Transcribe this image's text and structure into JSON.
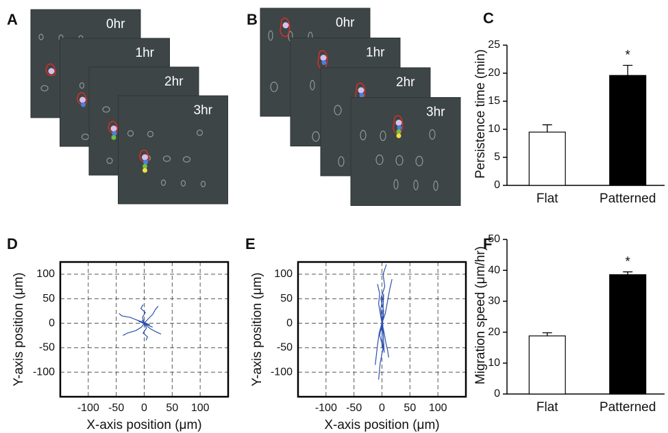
{
  "image_panels": [
    {
      "label": "A",
      "frames": [
        "0hr",
        "1hr",
        "2hr",
        "3hr"
      ]
    },
    {
      "label": "B",
      "frames": [
        "0hr",
        "1hr",
        "2hr",
        "3hr"
      ]
    }
  ],
  "chart_data": [
    {
      "label": "C",
      "type": "bar",
      "categories": [
        "Flat",
        "Patterned"
      ],
      "values": [
        9.5,
        19.6
      ],
      "errors": [
        1.3,
        1.8
      ],
      "colors": [
        "#ffffff",
        "#000000"
      ],
      "ylabel": "Persistence time (min)",
      "ylim": [
        0,
        25
      ],
      "yticks": [
        0,
        5,
        10,
        15,
        20,
        25
      ],
      "annotation": "*"
    },
    {
      "label": "D",
      "type": "line",
      "xlabel": "X-axis position (μm)",
      "ylabel": "Y-axis position (μm)",
      "xlim": [
        -150,
        150
      ],
      "xticks": [
        -100,
        -50,
        0,
        50,
        100
      ],
      "ylim": [
        -150,
        125
      ],
      "yticks": [
        -100,
        -50,
        0,
        50,
        100
      ],
      "grid": true,
      "series": [
        {
          "color": "#2a4fb0",
          "x": [
            0,
            -10,
            -25,
            -40,
            -45
          ],
          "values": [
            0,
            5,
            12,
            15,
            20
          ]
        },
        {
          "color": "#2a4fb0",
          "x": [
            0,
            8,
            15,
            20,
            25
          ],
          "values": [
            0,
            10,
            18,
            28,
            35
          ]
        },
        {
          "color": "#2a4fb0",
          "x": [
            0,
            -5,
            -15,
            -30,
            -38
          ],
          "values": [
            0,
            -8,
            -15,
            -20,
            -25
          ]
        },
        {
          "color": "#2a4fb0",
          "x": [
            0,
            5,
            12,
            22,
            30
          ],
          "values": [
            0,
            -6,
            -12,
            -18,
            -22
          ]
        },
        {
          "color": "#2a4fb0",
          "x": [
            0,
            -3,
            2,
            -6,
            -2
          ],
          "values": [
            0,
            12,
            22,
            30,
            38
          ]
        },
        {
          "color": "#2a4fb0",
          "x": [
            0,
            4,
            -2,
            6,
            3
          ],
          "values": [
            0,
            -10,
            -20,
            -28,
            -35
          ]
        },
        {
          "color": "#2a4fb0",
          "x": [
            0,
            -8,
            5,
            -4,
            8,
            -2
          ],
          "values": [
            0,
            4,
            -3,
            6,
            -5,
            2
          ]
        },
        {
          "color": "#2a4fb0",
          "x": [
            0,
            10,
            -12,
            15,
            -10
          ],
          "values": [
            0,
            -3,
            6,
            -8,
            4
          ]
        }
      ]
    },
    {
      "label": "E",
      "type": "line",
      "xlabel": "X-axis position (μm)",
      "ylabel": "Y-axis position (μm)",
      "xlim": [
        -150,
        150
      ],
      "xticks": [
        -100,
        -50,
        0,
        50,
        100
      ],
      "ylim": [
        -150,
        125
      ],
      "yticks": [
        -100,
        -50,
        0,
        50,
        100
      ],
      "grid": true,
      "series": [
        {
          "color": "#2a4fb0",
          "x": [
            0,
            3,
            -2,
            5,
            2,
            8
          ],
          "values": [
            0,
            25,
            50,
            75,
            100,
            120
          ]
        },
        {
          "color": "#2a4fb0",
          "x": [
            0,
            -4,
            2,
            -3,
            -6
          ],
          "values": [
            0,
            -25,
            -50,
            -80,
            -115
          ]
        },
        {
          "color": "#2a4fb0",
          "x": [
            0,
            6,
            10,
            14,
            18
          ],
          "values": [
            0,
            20,
            45,
            70,
            90
          ]
        },
        {
          "color": "#2a4fb0",
          "x": [
            0,
            -5,
            -8,
            -10,
            -12
          ],
          "values": [
            0,
            -20,
            -45,
            -65,
            -85
          ]
        },
        {
          "color": "#2a4fb0",
          "x": [
            0,
            -3,
            -6,
            -4,
            -8
          ],
          "values": [
            0,
            20,
            40,
            60,
            80
          ]
        },
        {
          "color": "#2a4fb0",
          "x": [
            0,
            4,
            7,
            10,
            12
          ],
          "values": [
            0,
            -20,
            -40,
            -55,
            -70
          ]
        },
        {
          "color": "#2a4fb0",
          "x": [
            0,
            2,
            -2,
            3,
            -1
          ],
          "values": [
            0,
            15,
            -10,
            20,
            -15
          ]
        },
        {
          "color": "#2a4fb0",
          "x": [
            0,
            -2,
            3,
            0,
            4,
            1
          ],
          "values": [
            0,
            30,
            60,
            -30,
            -60,
            10
          ]
        }
      ]
    },
    {
      "label": "F",
      "type": "bar",
      "categories": [
        "Flat",
        "Patterned"
      ],
      "values": [
        18.8,
        38.6
      ],
      "errors": [
        1.0,
        0.9
      ],
      "colors": [
        "#ffffff",
        "#000000"
      ],
      "ylabel": "Migration speed (μm/hr)",
      "ylim": [
        0,
        50
      ],
      "yticks": [
        0,
        10,
        20,
        30,
        40,
        50
      ],
      "annotation": "*"
    }
  ]
}
